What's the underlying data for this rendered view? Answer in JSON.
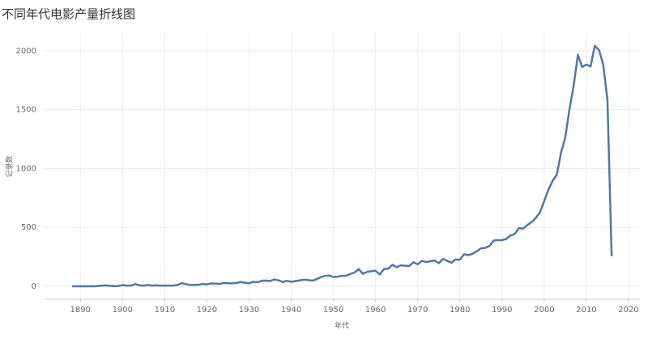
{
  "chart_data": {
    "type": "line",
    "title": "不同年代电影产量折线图",
    "x_label": "年代",
    "y_label": "记录数",
    "x": [
      1888,
      1889,
      1890,
      1891,
      1892,
      1893,
      1894,
      1895,
      1896,
      1897,
      1898,
      1899,
      1900,
      1901,
      1902,
      1903,
      1904,
      1905,
      1906,
      1907,
      1908,
      1909,
      1910,
      1911,
      1912,
      1913,
      1914,
      1915,
      1916,
      1917,
      1918,
      1919,
      1920,
      1921,
      1922,
      1923,
      1924,
      1925,
      1926,
      1927,
      1928,
      1929,
      1930,
      1931,
      1932,
      1933,
      1934,
      1935,
      1936,
      1937,
      1938,
      1939,
      1940,
      1941,
      1942,
      1943,
      1944,
      1945,
      1946,
      1947,
      1948,
      1949,
      1950,
      1951,
      1952,
      1953,
      1954,
      1955,
      1956,
      1957,
      1958,
      1959,
      1960,
      1961,
      1962,
      1963,
      1964,
      1965,
      1966,
      1967,
      1968,
      1969,
      1970,
      1971,
      1972,
      1973,
      1974,
      1975,
      1976,
      1977,
      1978,
      1979,
      1980,
      1981,
      1982,
      1983,
      1984,
      1985,
      1986,
      1987,
      1988,
      1989,
      1990,
      1991,
      1992,
      1993,
      1994,
      1995,
      1996,
      1997,
      1998,
      1999,
      2000,
      2001,
      2002,
      2003,
      2004,
      2005,
      2006,
      2007,
      2008,
      2009,
      2010,
      2011,
      2012,
      2013,
      2014,
      2015,
      2016
    ],
    "series": [
      {
        "name": "记录数",
        "color": "#4e79a7",
        "values": [
          0,
          0,
          0,
          0,
          0,
          0,
          1,
          5,
          8,
          3,
          2,
          2,
          10,
          5,
          6,
          18,
          8,
          5,
          10,
          6,
          8,
          5,
          6,
          5,
          6,
          10,
          26,
          18,
          10,
          12,
          12,
          20,
          16,
          24,
          22,
          20,
          28,
          26,
          24,
          28,
          36,
          30,
          24,
          38,
          34,
          46,
          48,
          44,
          58,
          50,
          36,
          46,
          38,
          44,
          50,
          56,
          52,
          48,
          60,
          76,
          88,
          92,
          78,
          82,
          88,
          90,
          104,
          116,
          146,
          106,
          122,
          128,
          132,
          100,
          146,
          150,
          182,
          162,
          178,
          174,
          172,
          204,
          186,
          216,
          206,
          212,
          220,
          196,
          232,
          216,
          200,
          228,
          226,
          272,
          264,
          276,
          296,
          322,
          326,
          342,
          388,
          392,
          392,
          402,
          432,
          444,
          494,
          490,
          520,
          544,
          580,
          628,
          724,
          820,
          896,
          948,
          1136,
          1264,
          1504,
          1708,
          1968,
          1864,
          1884,
          1868,
          2044,
          2008,
          1884,
          1584,
          256
        ]
      }
    ],
    "xlim": [
      1881.5,
      2022.7
    ],
    "ylim": [
      -110,
      2158
    ],
    "xticks": [
      1890,
      1900,
      1910,
      1920,
      1930,
      1940,
      1950,
      1960,
      1970,
      1980,
      1990,
      2000,
      2010,
      2020
    ],
    "yticks": [
      0,
      500,
      1000,
      1500,
      2000
    ],
    "grid": true
  }
}
